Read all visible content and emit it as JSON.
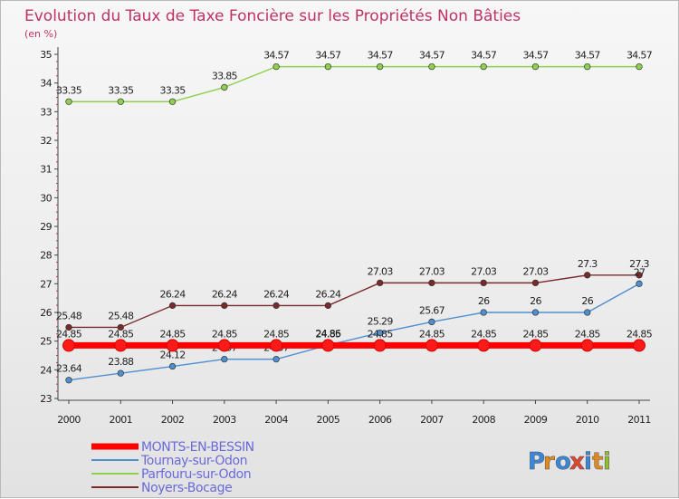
{
  "chart_data": {
    "type": "line",
    "title": "Evolution du Taux de Taxe Foncière sur les Propriétés Non Bâties",
    "subtitle": "(en %)",
    "x": [
      "2000",
      "2001",
      "2002",
      "2003",
      "2004",
      "2005",
      "2006",
      "2007",
      "2008",
      "2009",
      "2010",
      "2011"
    ],
    "ylim": [
      23,
      35
    ],
    "yticks": [
      23,
      24,
      25,
      26,
      27,
      28,
      29,
      30,
      31,
      32,
      33,
      34,
      35
    ],
    "grid": false,
    "legend_position": "bottom-left",
    "series": [
      {
        "name": "MONTS-EN-BESSIN",
        "color": "#ff0000",
        "values": [
          24.85,
          24.85,
          24.85,
          24.85,
          24.85,
          24.85,
          24.85,
          24.85,
          24.85,
          24.85,
          24.85,
          24.85
        ],
        "labels": [
          "24.85",
          "24.85",
          "24.85",
          "24.85",
          "24.85",
          "24.85",
          "24.85",
          "24.85",
          "24.85",
          "24.85",
          "24.85",
          "24.85"
        ]
      },
      {
        "name": "Tournay-sur-Odon",
        "color": "#4f8fd0",
        "values": [
          23.64,
          23.88,
          24.12,
          24.37,
          24.37,
          24.86,
          25.29,
          25.67,
          26,
          26,
          26,
          27
        ],
        "labels": [
          "23.64",
          "23.88",
          "24.12",
          "24.37",
          "24.37",
          "24.86",
          "25.29",
          "25.67",
          "26",
          "26",
          "26",
          "27"
        ]
      },
      {
        "name": "Parfouru-sur-Odon",
        "color": "#8fd04f",
        "values": [
          33.35,
          33.35,
          33.35,
          33.85,
          34.57,
          34.57,
          34.57,
          34.57,
          34.57,
          34.57,
          34.57,
          34.57
        ],
        "labels": [
          "33.35",
          "33.35",
          "33.35",
          "33.85",
          "34.57",
          "34.57",
          "34.57",
          "34.57",
          "34.57",
          "34.57",
          "34.57",
          "34.57"
        ]
      },
      {
        "name": "Noyers-Bocage",
        "color": "#7a2a2a",
        "values": [
          25.48,
          25.48,
          26.24,
          26.24,
          26.24,
          26.24,
          27.03,
          27.03,
          27.03,
          27.03,
          27.3,
          27.3
        ],
        "labels": [
          "25.48",
          "25.48",
          "26.24",
          "26.24",
          "26.24",
          "26.24",
          "27.03",
          "27.03",
          "27.03",
          "27.03",
          "27.3",
          "27.3"
        ]
      }
    ]
  },
  "brand": {
    "letters": [
      "P",
      "r",
      "o",
      "x",
      "i",
      "t",
      "i"
    ],
    "colors": [
      "#3a86d8",
      "#e08a1e",
      "#3a86d8",
      "#e2452f",
      "#3a86d8",
      "#e08a1e",
      "#8fbf2a"
    ]
  }
}
